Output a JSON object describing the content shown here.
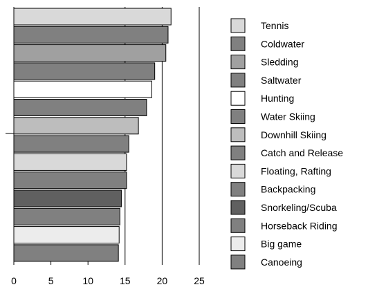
{
  "chart_data": {
    "type": "bar",
    "orientation": "horizontal",
    "title": "",
    "xlabel": "",
    "ylabel": "",
    "xlim": [
      0,
      25
    ],
    "x_ticks": [
      "0",
      "5",
      "10",
      "15",
      "20",
      "25"
    ],
    "grid": "vertical lines at 15, 20, 25",
    "legend": "right",
    "categories": [
      "Tennis",
      "Coldwater",
      "Sledding",
      "Saltwater",
      "Hunting",
      "Water Skiing",
      "Downhill Skiing",
      "Catch and Release",
      "Floating, Rafting",
      "Backpacking",
      "Snorkeling/Scuba",
      "Horseback Riding",
      "Big game",
      "Canoeing"
    ],
    "values": [
      21.2,
      20.8,
      20.5,
      19.0,
      18.6,
      17.9,
      16.8,
      15.5,
      15.2,
      15.2,
      14.5,
      14.3,
      14.2,
      14.1
    ],
    "colors": [
      "#d9d9d9",
      "#808080",
      "#a0a0a0",
      "#808080",
      "#ffffff",
      "#808080",
      "#bdbdbd",
      "#808080",
      "#d9d9d9",
      "#808080",
      "#606060",
      "#808080",
      "#ececec",
      "#808080"
    ]
  }
}
